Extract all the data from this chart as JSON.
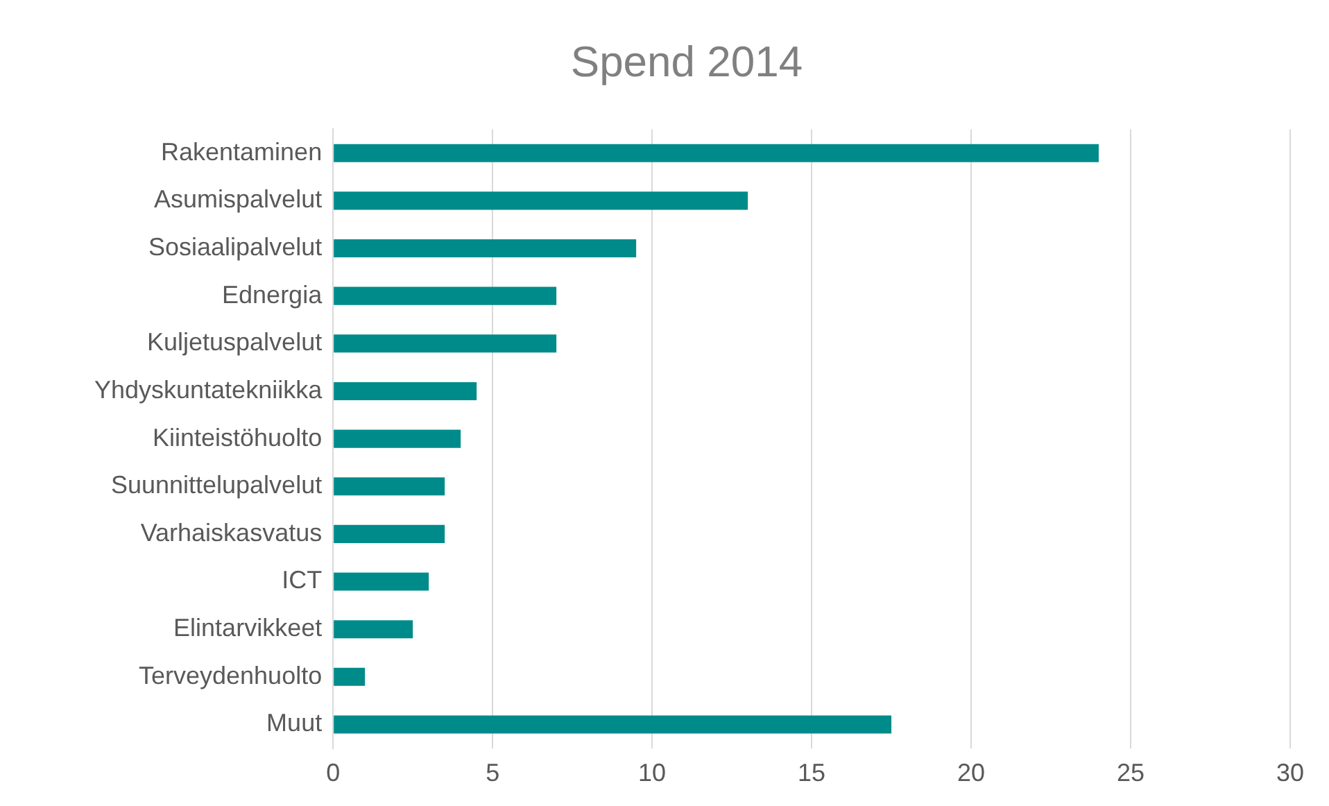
{
  "chart_data": {
    "type": "bar",
    "orientation": "horizontal",
    "title": "Spend 2014",
    "categories": [
      "Rakentaminen",
      "Asumispalvelut",
      "Sosiaalipalvelut",
      "Ednergia",
      "Kuljetuspalvelut",
      "Yhdyskuntatekniikka",
      "Kiinteistöhuolto",
      "Suunnittelupalvelut",
      "Varhaiskasvatus",
      "ICT",
      "Elintarvikkeet",
      "Terveydenhuolto",
      "Muut"
    ],
    "values": [
      24,
      13,
      9.5,
      7,
      7,
      4.5,
      4,
      3.5,
      3.5,
      3,
      2.5,
      1,
      17.5
    ],
    "color": "#008b8b",
    "xlim": [
      0,
      30
    ],
    "xticks": [
      0,
      5,
      10,
      15,
      20,
      25,
      30
    ],
    "grid": "x",
    "legend": false
  }
}
